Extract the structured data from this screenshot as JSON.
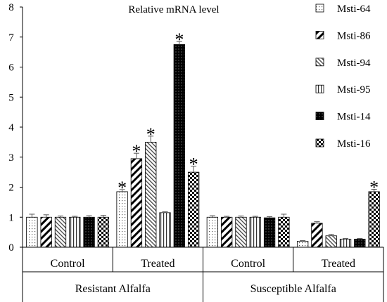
{
  "chart_data": {
    "type": "bar",
    "title": "Relative mRNA level",
    "ylim": [
      0,
      8
    ],
    "yticks": [
      "0",
      "1",
      "2",
      "3",
      "4",
      "5",
      "6",
      "7",
      "8"
    ],
    "groups": [
      "Resistant Alfalfa",
      "Susceptible Alfalfa"
    ],
    "conditions": [
      "Control",
      "Treated"
    ],
    "categories": [
      "Resistant Alfalfa Control",
      "Resistant Alfalfa Treated",
      "Susceptible Alfalfa Control",
      "Susceptible Alfalfa Treated"
    ],
    "significance_marker": "*",
    "legend_position": "right",
    "grid": false,
    "series": [
      {
        "name": "Msti-64",
        "values": [
          1.0,
          1.85,
          1.0,
          0.2
        ],
        "errors": [
          0.1,
          0.07,
          0.05,
          0.02
        ],
        "significant": [
          false,
          true,
          false,
          false
        ],
        "pattern": "dots"
      },
      {
        "name": "Msti-86",
        "values": [
          1.0,
          2.95,
          1.0,
          0.8
        ],
        "errors": [
          0.08,
          0.18,
          0.03,
          0.05
        ],
        "significant": [
          false,
          true,
          false,
          false
        ],
        "pattern": "diag-bold"
      },
      {
        "name": "Msti-94",
        "values": [
          1.0,
          3.5,
          1.0,
          0.38
        ],
        "errors": [
          0.04,
          0.2,
          0.04,
          0.05
        ],
        "significant": [
          false,
          true,
          false,
          false
        ],
        "pattern": "diag-thin"
      },
      {
        "name": "Msti-95",
        "values": [
          1.0,
          1.15,
          1.0,
          0.27
        ],
        "errors": [
          0.03,
          0.03,
          0.03,
          0.02
        ],
        "significant": [
          false,
          false,
          false,
          false
        ],
        "pattern": "vertical"
      },
      {
        "name": "Msti-14",
        "values": [
          1.0,
          6.75,
          0.98,
          0.27
        ],
        "errors": [
          0.05,
          0.1,
          0.04,
          0.02
        ],
        "significant": [
          false,
          true,
          false,
          false
        ],
        "pattern": "dark-dots"
      },
      {
        "name": "Msti-16",
        "values": [
          1.0,
          2.5,
          1.0,
          1.85
        ],
        "errors": [
          0.06,
          0.2,
          0.1,
          0.08
        ],
        "significant": [
          false,
          true,
          false,
          true
        ],
        "pattern": "checker"
      }
    ]
  }
}
